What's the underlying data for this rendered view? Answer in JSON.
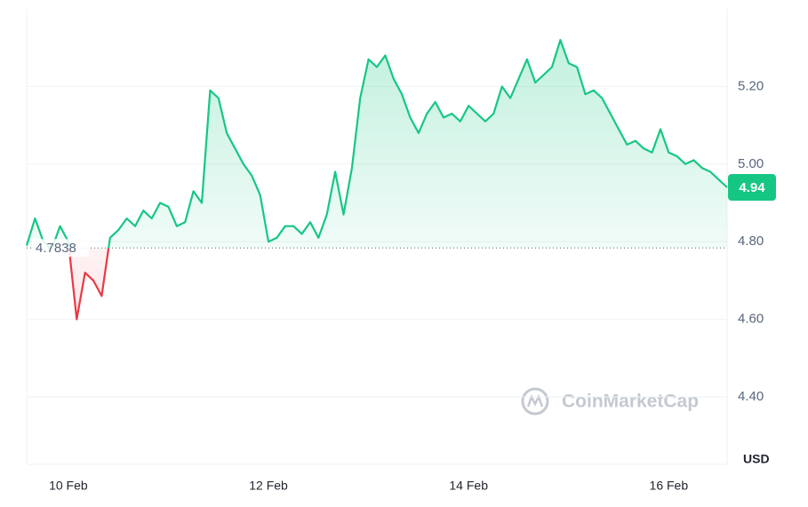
{
  "chart_data": {
    "type": "line",
    "categories": [
      null,
      null,
      null,
      null,
      null,
      "10 Feb",
      null,
      null,
      null,
      null,
      null,
      null,
      null,
      null,
      null,
      null,
      null,
      null,
      null,
      null,
      null,
      null,
      null,
      null,
      null,
      null,
      null,
      null,
      null,
      "12 Feb",
      null,
      null,
      null,
      null,
      null,
      null,
      null,
      null,
      null,
      null,
      null,
      null,
      null,
      null,
      null,
      null,
      null,
      null,
      null,
      null,
      null,
      null,
      null,
      "14 Feb",
      null,
      null,
      null,
      null,
      null,
      null,
      null,
      null,
      null,
      null,
      null,
      null,
      null,
      null,
      null,
      null,
      null,
      null,
      null,
      null,
      null,
      null,
      null,
      "16 Feb",
      null,
      null,
      null,
      null,
      null,
      null,
      null
    ],
    "values": [
      4.79,
      4.86,
      4.8,
      4.78,
      4.84,
      4.8,
      4.6,
      4.72,
      4.7,
      4.66,
      4.81,
      4.83,
      4.86,
      4.84,
      4.88,
      4.86,
      4.9,
      4.89,
      4.84,
      4.85,
      4.93,
      4.9,
      5.19,
      5.17,
      5.08,
      5.04,
      5.0,
      4.97,
      4.92,
      4.8,
      4.81,
      4.84,
      4.84,
      4.82,
      4.85,
      4.81,
      4.87,
      4.98,
      4.87,
      4.99,
      5.17,
      5.27,
      5.25,
      5.28,
      5.22,
      5.18,
      5.12,
      5.08,
      5.13,
      5.16,
      5.12,
      5.13,
      5.11,
      5.15,
      5.13,
      5.11,
      5.13,
      5.2,
      5.17,
      5.22,
      5.27,
      5.21,
      5.23,
      5.25,
      5.32,
      5.26,
      5.25,
      5.18,
      5.19,
      5.17,
      5.13,
      5.09,
      5.05,
      5.06,
      5.04,
      5.03,
      5.09,
      5.03,
      5.02,
      5.0,
      5.01,
      4.99,
      4.98,
      4.96,
      4.94
    ],
    "baseline": 4.7838,
    "up_color": "#16c784",
    "down_color": "#ea3943",
    "ylim": [
      4.226,
      5.4
    ],
    "yticks": [
      {
        "value": 4.4,
        "label": "4.40"
      },
      {
        "value": 4.6,
        "label": "4.60"
      },
      {
        "value": 4.8,
        "label": "4.80"
      },
      {
        "value": 5.0,
        "label": "5.00"
      },
      {
        "value": 5.2,
        "label": "5.20"
      }
    ],
    "y_label": "USD",
    "watermark": "CoinMarketCap",
    "grid": true
  }
}
